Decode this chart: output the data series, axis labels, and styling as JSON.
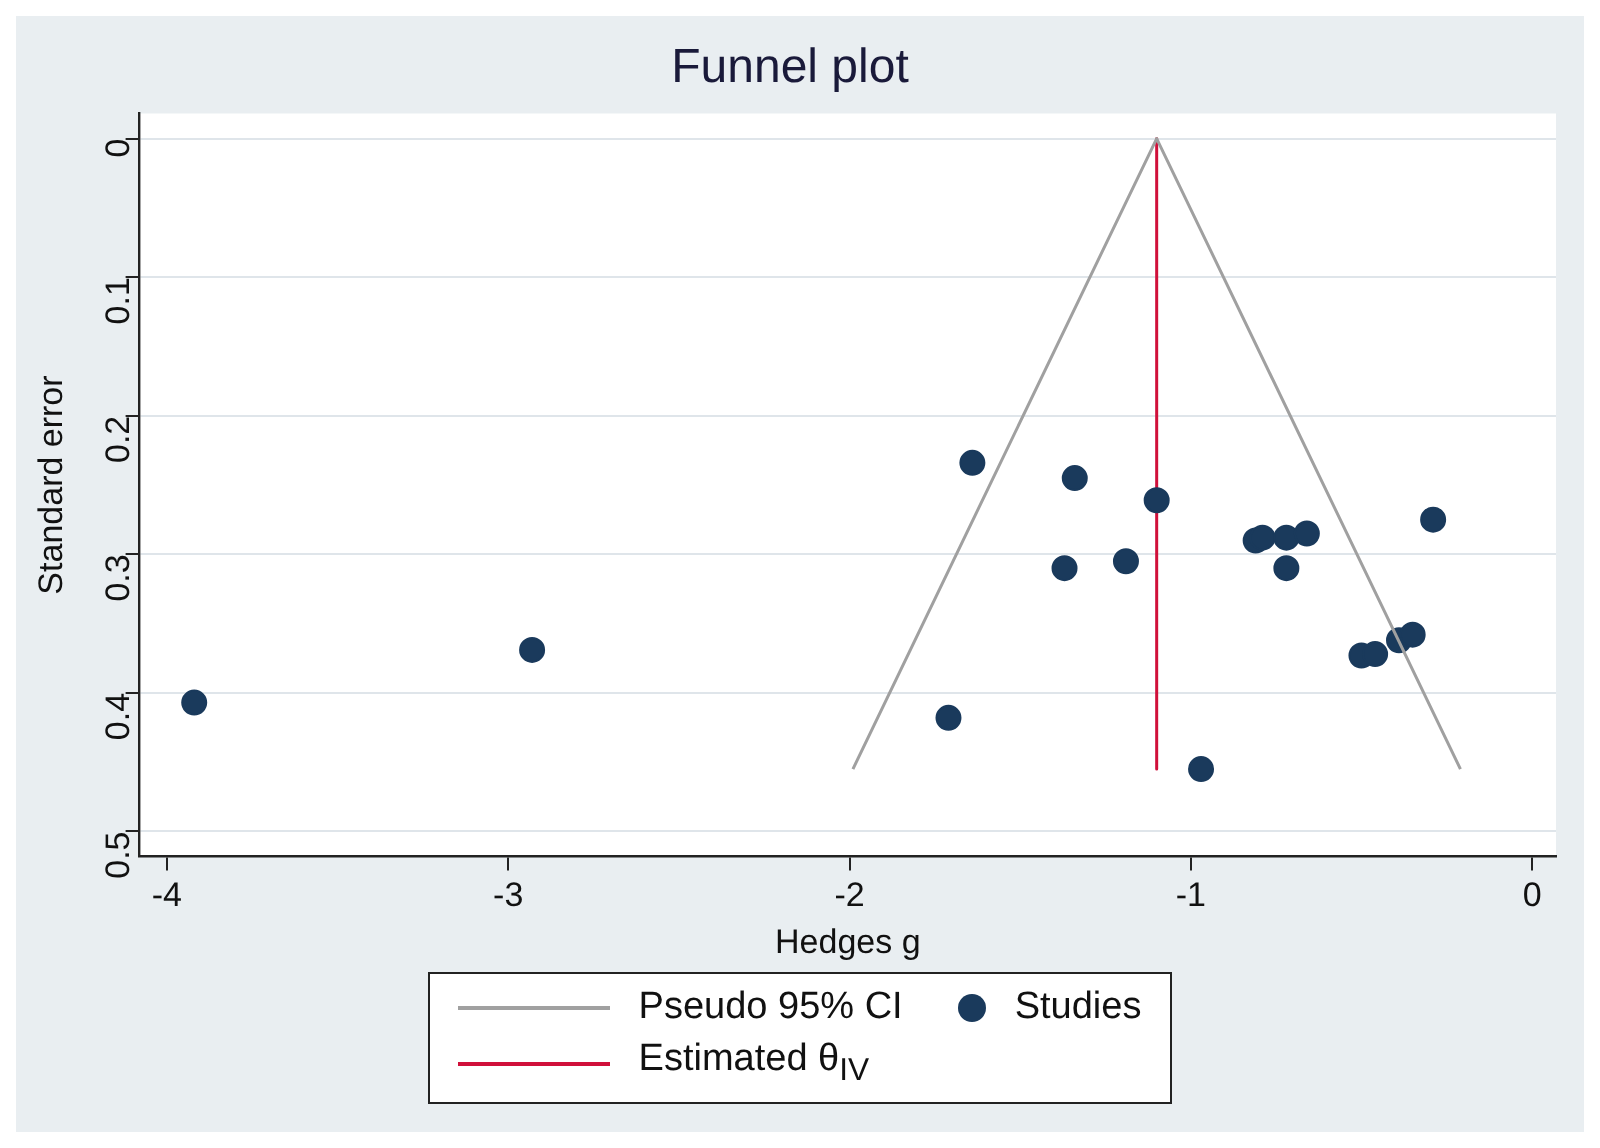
{
  "chart_data": {
    "type": "scatter",
    "title": "Funnel plot",
    "xlabel": "Hedges g",
    "ylabel": "Standard error",
    "xlim": [
      -4.08,
      0.07
    ],
    "xticks": [
      -4,
      -3,
      -2,
      -1,
      0
    ],
    "ylim": [
      0.518,
      -0.018
    ],
    "yticks": [
      0,
      0.1,
      0.2,
      0.3,
      0.4,
      0.5
    ],
    "grid": "y",
    "legend": "bottom",
    "series": [
      {
        "name": "Pseudo 95% CI",
        "type": "line",
        "color": "#a0a0a0",
        "x": [
          -1.99,
          -1.1,
          -0.21
        ],
        "values": [
          0.455,
          0,
          0.455
        ]
      },
      {
        "name": "Studies",
        "marker": "circle",
        "color": "#1a3a5c",
        "x": [
          -1.64,
          -1.34,
          -1.1,
          -1.37,
          -1.19,
          -0.81,
          -0.79,
          -0.72,
          -0.66,
          -0.72,
          -0.29,
          -0.5,
          -0.46,
          -0.39,
          -0.35,
          -1.71,
          -0.97,
          -3.92,
          -2.93
        ],
        "values": [
          0.234,
          0.245,
          0.261,
          0.31,
          0.305,
          0.29,
          0.288,
          0.288,
          0.285,
          0.31,
          0.275,
          0.373,
          0.372,
          0.362,
          0.358,
          0.418,
          0.455,
          0.407,
          0.369
        ]
      },
      {
        "name": "Estimated θ$_{IV}$",
        "type": "line",
        "color": "#d0103a",
        "x": [
          -1.1,
          -1.1
        ],
        "values": [
          0,
          0.455
        ]
      }
    ]
  }
}
